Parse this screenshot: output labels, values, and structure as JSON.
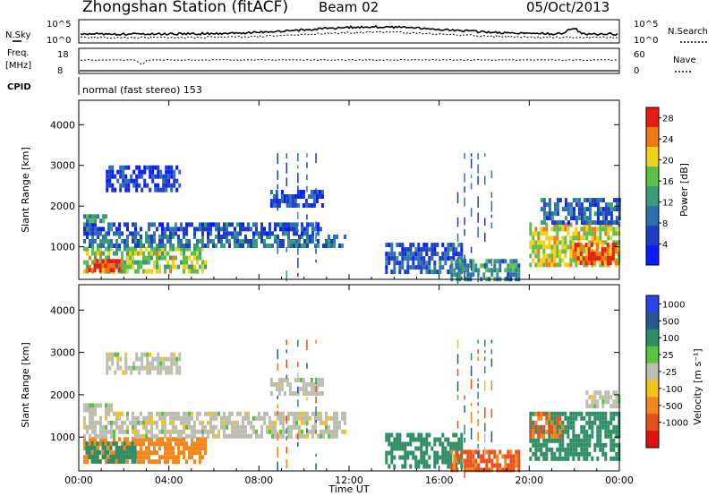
{
  "header": {
    "station": "Zhongshan Station (fitACF)",
    "beam": "Beam 02",
    "date": "05/Oct/2013"
  },
  "summary": {
    "nsky_label": "N.Sky",
    "nsearch_label": "N.Search",
    "noise_ticks": [
      "10^5",
      "10^0"
    ],
    "freq_label_1": "Freq.",
    "freq_label_2": "[MHz]",
    "freq_ticks": [
      "18",
      "8"
    ],
    "nave_label": "Nave",
    "nave_ticks": [
      "60",
      "0"
    ],
    "cpid_label": "CPID",
    "cpid_text": "normal (fast stereo) 153"
  },
  "colors": {
    "power": [
      "#0a1bff",
      "#1f3cc4",
      "#2d6fb0",
      "#3a9c78",
      "#5bbf4a",
      "#f0d018",
      "#f07a12",
      "#e81d10"
    ],
    "velocity": [
      "#2a44e8",
      "#245a8f",
      "#2e8d63",
      "#56c43d",
      "#bdbdb2",
      "#f4c419",
      "#f3871c",
      "#e8501c",
      "#e01010"
    ]
  },
  "chart_data": [
    {
      "type": "heatmap",
      "panel": "power",
      "ylabel": "Slant Range [km]",
      "y_ticks": [
        1000,
        2000,
        3000,
        4000
      ],
      "ylim": [
        200,
        4600
      ],
      "x_ticks": [
        "00:00",
        "04:00",
        "08:00",
        "12:00",
        "16:00",
        "20:00",
        "00:00"
      ],
      "xlim_hours": [
        0,
        24
      ],
      "colorbar_label": "Power [dB]",
      "colorbar_ticks": [
        4,
        8,
        12,
        16,
        20,
        24,
        28
      ],
      "colorbar_range": [
        0,
        30
      ],
      "regions": [
        {
          "t0": 0.2,
          "t1": 5.6,
          "r0": 400,
          "r1": 1000,
          "v": 18
        },
        {
          "t0": 0.3,
          "t1": 2.0,
          "r0": 450,
          "r1": 700,
          "v": 28
        },
        {
          "t0": 0.2,
          "t1": 11.8,
          "r0": 1000,
          "r1": 1300,
          "v": 10
        },
        {
          "t0": 0.2,
          "t1": 10.8,
          "r0": 1350,
          "r1": 1600,
          "v": 7
        },
        {
          "t0": 0.2,
          "t1": 1.2,
          "r0": 1600,
          "r1": 1800,
          "v": 14
        },
        {
          "t0": 8.5,
          "t1": 10.8,
          "r0": 2000,
          "r1": 2400,
          "v": 6
        },
        {
          "t0": 1.2,
          "t1": 4.5,
          "r0": 2400,
          "r1": 3000,
          "v": 5
        },
        {
          "t0": 13.6,
          "t1": 17.0,
          "r0": 350,
          "r1": 1100,
          "v": 7
        },
        {
          "t0": 16.5,
          "t1": 19.5,
          "r0": 250,
          "r1": 700,
          "v": 12
        },
        {
          "t0": 20.0,
          "t1": 24.0,
          "r0": 500,
          "r1": 1600,
          "v": 20
        },
        {
          "t0": 22.0,
          "t1": 24.0,
          "r0": 600,
          "r1": 1100,
          "v": 26
        },
        {
          "t0": 20.5,
          "t1": 24.0,
          "r0": 1600,
          "r1": 2200,
          "v": 8
        }
      ]
    },
    {
      "type": "heatmap",
      "panel": "velocity",
      "ylabel": "Slant Range [km]",
      "y_ticks": [
        1000,
        2000,
        3000,
        4000
      ],
      "ylim": [
        200,
        4600
      ],
      "x_ticks": [
        "00:00",
        "04:00",
        "08:00",
        "12:00",
        "16:00",
        "20:00",
        "00:00"
      ],
      "xlim_hours": [
        0,
        24
      ],
      "xlabel": "Time UT",
      "colorbar_label": "Velocity [m s⁻¹]",
      "colorbar_ticks": [
        1000,
        500,
        100,
        25,
        -25,
        -100,
        -500,
        -1000
      ],
      "regions": [
        {
          "t0": 0.2,
          "t1": 5.6,
          "r0": 400,
          "r1": 1000,
          "v": -100
        },
        {
          "t0": 0.3,
          "t1": 2.5,
          "r0": 450,
          "r1": 900,
          "v": 100
        },
        {
          "t0": 0.2,
          "t1": 11.8,
          "r0": 1000,
          "r1": 1600,
          "v": 0
        },
        {
          "t0": 0.2,
          "t1": 1.5,
          "r0": 1600,
          "r1": 1800,
          "v": 0
        },
        {
          "t0": 8.5,
          "t1": 10.8,
          "r0": 2000,
          "r1": 2400,
          "v": 0
        },
        {
          "t0": 1.2,
          "t1": 4.5,
          "r0": 2500,
          "r1": 3000,
          "v": 0
        },
        {
          "t0": 13.6,
          "t1": 17.0,
          "r0": 350,
          "r1": 1100,
          "v": 200
        },
        {
          "t0": 16.5,
          "t1": 19.5,
          "r0": 250,
          "r1": 700,
          "v": -400
        },
        {
          "t0": 20.0,
          "t1": 24.0,
          "r0": 500,
          "r1": 1600,
          "v": 150
        },
        {
          "t0": 20.0,
          "t1": 21.5,
          "r0": 1000,
          "r1": 1600,
          "v": -300
        },
        {
          "t0": 22.5,
          "t1": 24.0,
          "r0": 1700,
          "r1": 2100,
          "v": 0
        }
      ]
    }
  ]
}
